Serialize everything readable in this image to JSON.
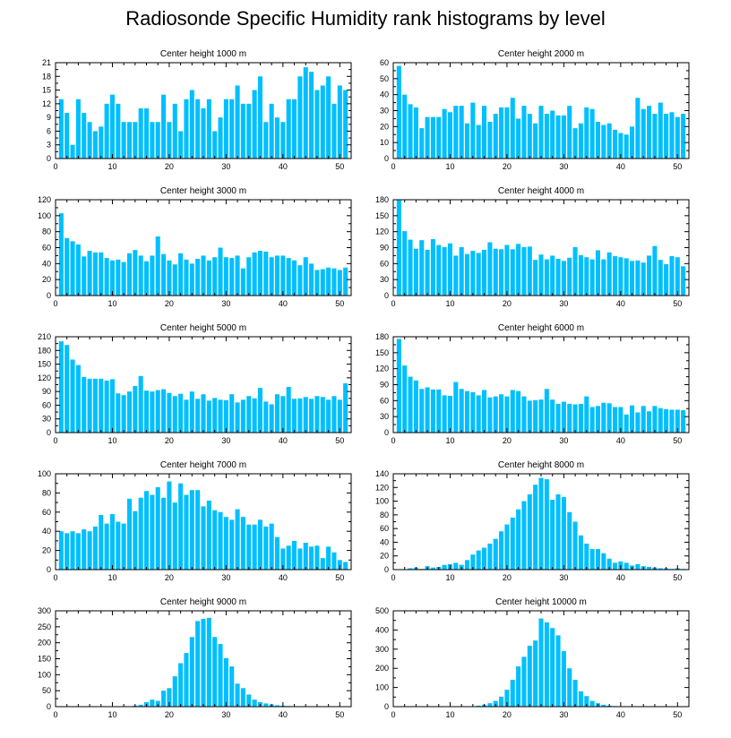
{
  "title": "Radiosonde Specific Humidity rank histograms by level",
  "colors": {
    "bar": "#00bfff",
    "axis": "#000000",
    "background": "#ffffff"
  },
  "chart_data": [
    {
      "type": "bar",
      "title": "Center height 1000 m",
      "xlim": [
        0,
        52
      ],
      "ylim": [
        0,
        21
      ],
      "xticks": [
        0,
        10,
        20,
        30,
        40,
        50
      ],
      "yticks": [
        0,
        3,
        6,
        9,
        12,
        15,
        18,
        21
      ],
      "x": [
        1,
        2,
        3,
        4,
        5,
        6,
        7,
        8,
        9,
        10,
        11,
        12,
        13,
        14,
        15,
        16,
        17,
        18,
        19,
        20,
        21,
        22,
        23,
        24,
        25,
        26,
        27,
        28,
        29,
        30,
        31,
        32,
        33,
        34,
        35,
        36,
        37,
        38,
        39,
        40,
        41,
        42,
        43,
        44,
        45,
        46,
        47,
        48,
        49,
        50,
        51
      ],
      "values": [
        13,
        10,
        3,
        13,
        10,
        8,
        6,
        7,
        12,
        14,
        12,
        8,
        8,
        8,
        11,
        11,
        8,
        8,
        14,
        8,
        12,
        6,
        13,
        15,
        13,
        11,
        13,
        6,
        9,
        13,
        13,
        16,
        12,
        12,
        15,
        18,
        8,
        12,
        9,
        8,
        13,
        13,
        18,
        20,
        19,
        15,
        16,
        18,
        12,
        16,
        15
      ]
    },
    {
      "type": "bar",
      "title": "Center height 2000 m",
      "xlim": [
        0,
        52
      ],
      "ylim": [
        0,
        60
      ],
      "xticks": [
        0,
        10,
        20,
        30,
        40,
        50
      ],
      "yticks": [
        0,
        10,
        20,
        30,
        40,
        50,
        60
      ],
      "x": [
        1,
        2,
        3,
        4,
        5,
        6,
        7,
        8,
        9,
        10,
        11,
        12,
        13,
        14,
        15,
        16,
        17,
        18,
        19,
        20,
        21,
        22,
        23,
        24,
        25,
        26,
        27,
        28,
        29,
        30,
        31,
        32,
        33,
        34,
        35,
        36,
        37,
        38,
        39,
        40,
        41,
        42,
        43,
        44,
        45,
        46,
        47,
        48,
        49,
        50,
        51
      ],
      "values": [
        58,
        40,
        34,
        32,
        19,
        26,
        26,
        26,
        31,
        29,
        33,
        33,
        22,
        35,
        21,
        33,
        23,
        28,
        32,
        32,
        38,
        25,
        33,
        28,
        22,
        33,
        28,
        30,
        27,
        27,
        33,
        19,
        22,
        32,
        31,
        23,
        21,
        22,
        18,
        16,
        15,
        20,
        38,
        31,
        33,
        28,
        35,
        28,
        29,
        26,
        28
      ]
    },
    {
      "type": "bar",
      "title": "Center height 3000 m",
      "xlim": [
        0,
        52
      ],
      "ylim": [
        0,
        120
      ],
      "xticks": [
        0,
        10,
        20,
        30,
        40,
        50
      ],
      "yticks": [
        0,
        20,
        40,
        60,
        80,
        100,
        120
      ],
      "x": [
        1,
        2,
        3,
        4,
        5,
        6,
        7,
        8,
        9,
        10,
        11,
        12,
        13,
        14,
        15,
        16,
        17,
        18,
        19,
        20,
        21,
        22,
        23,
        24,
        25,
        26,
        27,
        28,
        29,
        30,
        31,
        32,
        33,
        34,
        35,
        36,
        37,
        38,
        39,
        40,
        41,
        42,
        43,
        44,
        45,
        46,
        47,
        48,
        49,
        50,
        51
      ],
      "values": [
        103,
        72,
        68,
        64,
        49,
        56,
        54,
        54,
        47,
        44,
        45,
        42,
        53,
        57,
        50,
        43,
        50,
        74,
        52,
        44,
        39,
        53,
        45,
        40,
        46,
        50,
        44,
        48,
        60,
        48,
        47,
        50,
        34,
        48,
        54,
        56,
        55,
        48,
        50,
        50,
        47,
        44,
        38,
        48,
        40,
        32,
        33,
        35,
        34,
        32,
        35
      ]
    },
    {
      "type": "bar",
      "title": "Center height 4000 m",
      "xlim": [
        0,
        52
      ],
      "ylim": [
        0,
        180
      ],
      "xticks": [
        0,
        10,
        20,
        30,
        40,
        50
      ],
      "yticks": [
        0,
        30,
        60,
        90,
        120,
        150,
        180
      ],
      "x": [
        1,
        2,
        3,
        4,
        5,
        6,
        7,
        8,
        9,
        10,
        11,
        12,
        13,
        14,
        15,
        16,
        17,
        18,
        19,
        20,
        21,
        22,
        23,
        24,
        25,
        26,
        27,
        28,
        29,
        30,
        31,
        32,
        33,
        34,
        35,
        36,
        37,
        38,
        39,
        40,
        41,
        42,
        43,
        44,
        45,
        46,
        47,
        48,
        49,
        50,
        51
      ],
      "values": [
        180,
        121,
        105,
        88,
        104,
        86,
        106,
        95,
        91,
        98,
        75,
        91,
        78,
        84,
        80,
        86,
        100,
        88,
        87,
        95,
        87,
        97,
        91,
        92,
        67,
        77,
        68,
        75,
        69,
        65,
        71,
        91,
        76,
        72,
        68,
        85,
        68,
        81,
        74,
        72,
        70,
        65,
        66,
        62,
        75,
        93,
        67,
        59,
        74,
        72,
        55
      ]
    },
    {
      "type": "bar",
      "title": "Center height 5000 m",
      "xlim": [
        0,
        52
      ],
      "ylim": [
        0,
        210
      ],
      "xticks": [
        0,
        10,
        20,
        30,
        40,
        50
      ],
      "yticks": [
        0,
        30,
        60,
        90,
        120,
        150,
        180,
        210
      ],
      "x": [
        1,
        2,
        3,
        4,
        5,
        6,
        7,
        8,
        9,
        10,
        11,
        12,
        13,
        14,
        15,
        16,
        17,
        18,
        19,
        20,
        21,
        22,
        23,
        24,
        25,
        26,
        27,
        28,
        29,
        30,
        31,
        32,
        33,
        34,
        35,
        36,
        37,
        38,
        39,
        40,
        41,
        42,
        43,
        44,
        45,
        46,
        47,
        48,
        49,
        50,
        51
      ],
      "values": [
        200,
        192,
        160,
        148,
        122,
        118,
        118,
        118,
        114,
        117,
        86,
        82,
        90,
        102,
        124,
        92,
        90,
        93,
        95,
        87,
        80,
        85,
        72,
        90,
        74,
        84,
        70,
        76,
        72,
        71,
        84,
        66,
        72,
        80,
        75,
        98,
        68,
        62,
        84,
        80,
        100,
        74,
        75,
        78,
        74,
        80,
        78,
        72,
        80,
        72,
        108
      ]
    },
    {
      "type": "bar",
      "title": "Center height 6000 m",
      "xlim": [
        0,
        52
      ],
      "ylim": [
        0,
        180
      ],
      "xticks": [
        0,
        10,
        20,
        30,
        40,
        50
      ],
      "yticks": [
        0,
        30,
        60,
        90,
        120,
        150,
        180
      ],
      "x": [
        1,
        2,
        3,
        4,
        5,
        6,
        7,
        8,
        9,
        10,
        11,
        12,
        13,
        14,
        15,
        16,
        17,
        18,
        19,
        20,
        21,
        22,
        23,
        24,
        25,
        26,
        27,
        28,
        29,
        30,
        31,
        32,
        33,
        34,
        35,
        36,
        37,
        38,
        39,
        40,
        41,
        42,
        43,
        44,
        45,
        46,
        47,
        48,
        49,
        50,
        51
      ],
      "values": [
        176,
        126,
        105,
        98,
        82,
        85,
        81,
        81,
        70,
        69,
        95,
        82,
        78,
        76,
        70,
        80,
        66,
        68,
        72,
        68,
        80,
        78,
        68,
        60,
        61,
        62,
        82,
        62,
        54,
        58,
        54,
        53,
        54,
        68,
        48,
        50,
        56,
        55,
        48,
        48,
        34,
        51,
        38,
        50,
        40,
        50,
        46,
        44,
        43,
        43,
        42
      ]
    },
    {
      "type": "bar",
      "title": "Center height 7000 m",
      "xlim": [
        0,
        52
      ],
      "ylim": [
        0,
        100
      ],
      "xticks": [
        0,
        10,
        20,
        30,
        40,
        50
      ],
      "yticks": [
        0,
        20,
        40,
        60,
        80,
        100
      ],
      "x": [
        1,
        2,
        3,
        4,
        5,
        6,
        7,
        8,
        9,
        10,
        11,
        12,
        13,
        14,
        15,
        16,
        17,
        18,
        19,
        20,
        21,
        22,
        23,
        24,
        25,
        26,
        27,
        28,
        29,
        30,
        31,
        32,
        33,
        34,
        35,
        36,
        37,
        38,
        39,
        40,
        41,
        42,
        43,
        44,
        45,
        46,
        47,
        48,
        49,
        50,
        51
      ],
      "values": [
        40,
        38,
        40,
        38,
        42,
        40,
        45,
        57,
        48,
        58,
        50,
        48,
        74,
        61,
        75,
        82,
        78,
        86,
        75,
        92,
        70,
        90,
        78,
        83,
        83,
        66,
        72,
        62,
        60,
        55,
        52,
        63,
        55,
        47,
        47,
        52,
        45,
        48,
        34,
        22,
        25,
        30,
        22,
        28,
        24,
        25,
        12,
        24,
        18,
        10,
        8
      ]
    },
    {
      "type": "bar",
      "title": "Center height 8000 m",
      "xlim": [
        0,
        52
      ],
      "ylim": [
        0,
        140
      ],
      "xticks": [
        0,
        10,
        20,
        30,
        40,
        50
      ],
      "yticks": [
        0,
        20,
        40,
        60,
        80,
        100,
        120,
        140
      ],
      "x": [
        1,
        2,
        3,
        4,
        5,
        6,
        7,
        8,
        9,
        10,
        11,
        12,
        13,
        14,
        15,
        16,
        17,
        18,
        19,
        20,
        21,
        22,
        23,
        24,
        25,
        26,
        27,
        28,
        29,
        30,
        31,
        32,
        33,
        34,
        35,
        36,
        37,
        38,
        39,
        40,
        41,
        42,
        43,
        44,
        45,
        46,
        47,
        48,
        49,
        50,
        51
      ],
      "values": [
        0,
        0,
        2,
        3,
        1,
        5,
        3,
        4,
        7,
        8,
        10,
        7,
        14,
        22,
        28,
        32,
        38,
        45,
        56,
        66,
        76,
        88,
        100,
        110,
        124,
        134,
        132,
        102,
        110,
        106,
        84,
        70,
        50,
        38,
        30,
        30,
        24,
        16,
        10,
        12,
        10,
        6,
        8,
        5,
        4,
        3,
        2,
        2,
        1,
        2,
        1
      ]
    },
    {
      "type": "bar",
      "title": "Center height 9000 m",
      "xlim": [
        0,
        52
      ],
      "ylim": [
        0,
        300
      ],
      "xticks": [
        0,
        10,
        20,
        30,
        40,
        50
      ],
      "yticks": [
        0,
        50,
        100,
        150,
        200,
        250,
        300
      ],
      "x": [
        1,
        2,
        3,
        4,
        5,
        6,
        7,
        8,
        9,
        10,
        11,
        12,
        13,
        14,
        15,
        16,
        17,
        18,
        19,
        20,
        21,
        22,
        23,
        24,
        25,
        26,
        27,
        28,
        29,
        30,
        31,
        32,
        33,
        34,
        35,
        36,
        37,
        38,
        39,
        40,
        41,
        42,
        43,
        44,
        45,
        46,
        47,
        48,
        49,
        50,
        51
      ],
      "values": [
        0,
        0,
        0,
        0,
        0,
        0,
        0,
        0,
        0,
        1,
        1,
        1,
        1,
        3,
        6,
        14,
        22,
        18,
        50,
        58,
        95,
        136,
        168,
        218,
        268,
        275,
        278,
        218,
        196,
        152,
        126,
        72,
        58,
        38,
        22,
        14,
        10,
        7,
        4,
        3,
        2,
        1,
        1,
        0,
        0,
        0,
        0,
        0,
        0,
        0,
        0
      ]
    },
    {
      "type": "bar",
      "title": "Center height 10000 m",
      "xlim": [
        0,
        52
      ],
      "ylim": [
        0,
        500
      ],
      "xticks": [
        0,
        10,
        20,
        30,
        40,
        50
      ],
      "yticks": [
        0,
        100,
        200,
        300,
        400,
        500
      ],
      "x": [
        1,
        2,
        3,
        4,
        5,
        6,
        7,
        8,
        9,
        10,
        11,
        12,
        13,
        14,
        15,
        16,
        17,
        18,
        19,
        20,
        21,
        22,
        23,
        24,
        25,
        26,
        27,
        28,
        29,
        30,
        31,
        32,
        33,
        34,
        35,
        36,
        37,
        38,
        39,
        40,
        41,
        42,
        43,
        44,
        45,
        46,
        47,
        48,
        49,
        50,
        51
      ],
      "values": [
        0,
        0,
        0,
        0,
        0,
        0,
        0,
        0,
        0,
        0,
        0,
        0,
        1,
        2,
        5,
        10,
        18,
        30,
        52,
        88,
        140,
        210,
        260,
        318,
        345,
        460,
        440,
        410,
        372,
        290,
        200,
        140,
        80,
        55,
        30,
        18,
        10,
        5,
        3,
        2,
        1,
        0,
        0,
        0,
        0,
        0,
        0,
        0,
        0,
        0,
        0
      ]
    }
  ]
}
